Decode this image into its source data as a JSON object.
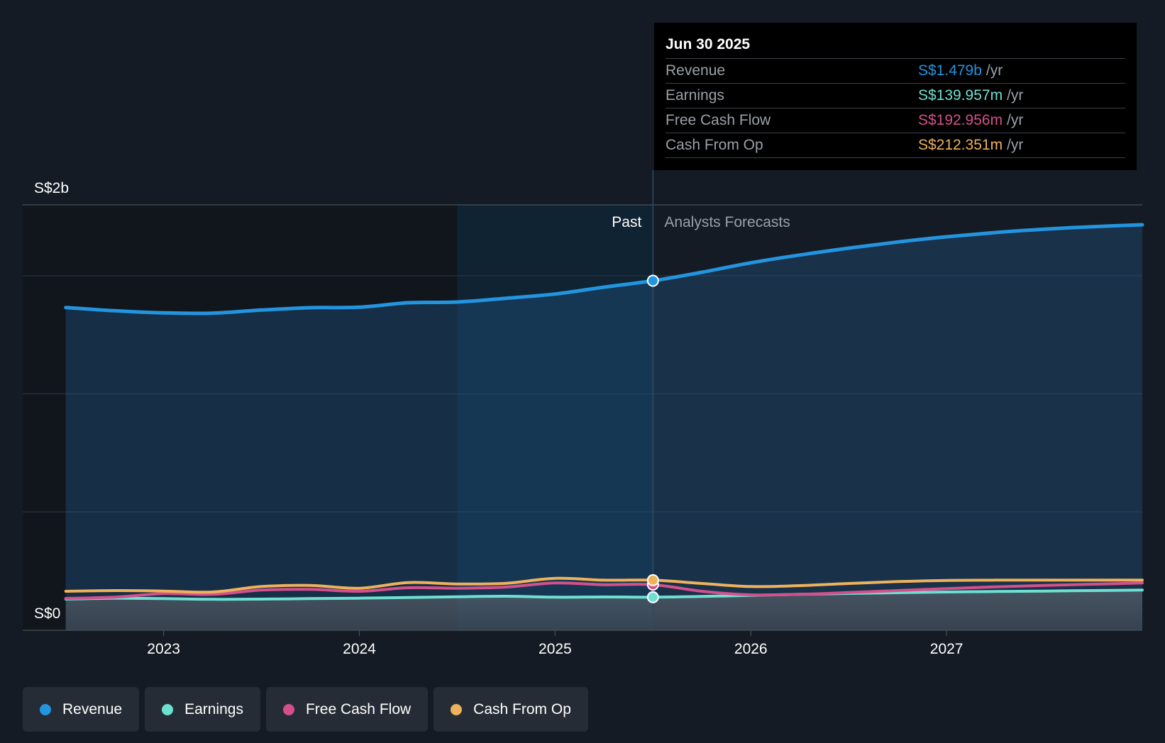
{
  "chart_data": {
    "type": "area",
    "title": "",
    "xlabel": "",
    "ylabel": "",
    "y_tick_labels": [
      "S$0",
      "S$2b"
    ],
    "ylim": [
      0,
      1800000000
    ],
    "x_ticks": [
      {
        "value": 2023.0,
        "label": "2023"
      },
      {
        "value": 2024.0,
        "label": "2024"
      },
      {
        "value": 2025.0,
        "label": "2025"
      },
      {
        "value": 2026.0,
        "label": "2026"
      },
      {
        "value": 2027.0,
        "label": "2027"
      }
    ],
    "xlim": [
      2022.28,
      2028.0
    ],
    "past_label": "Past",
    "forecast_label": "Analysts Forecasts",
    "divider_x": 2025.5,
    "highlight_start_x": 2024.5,
    "series": [
      {
        "name": "Revenue",
        "color": "#2394df",
        "x": [
          2022.5,
          2022.75,
          2023.0,
          2023.25,
          2023.5,
          2023.75,
          2024.0,
          2024.25,
          2024.5,
          2024.75,
          2025.0,
          2025.25,
          2025.5,
          2025.75,
          2026.0,
          2026.25,
          2026.5,
          2026.75,
          2027.0,
          2027.25,
          2027.5,
          2027.75,
          2028.0
        ],
        "values": [
          1366000000,
          1352000000,
          1343000000,
          1342000000,
          1355000000,
          1365000000,
          1367000000,
          1386000000,
          1389000000,
          1405000000,
          1423000000,
          1452000000,
          1479000000,
          1515000000,
          1555000000,
          1588000000,
          1617000000,
          1643000000,
          1665000000,
          1683000000,
          1697000000,
          1708000000,
          1716000000
        ]
      },
      {
        "name": "Earnings",
        "color": "#6ee0d2",
        "x": [
          2022.5,
          2022.75,
          2023.0,
          2023.25,
          2023.5,
          2023.75,
          2024.0,
          2024.25,
          2024.5,
          2024.75,
          2025.0,
          2025.25,
          2025.5,
          2025.75,
          2026.0,
          2026.25,
          2026.5,
          2026.75,
          2027.0,
          2027.25,
          2027.5,
          2027.75,
          2028.0
        ],
        "values": [
          132000000,
          136000000,
          134000000,
          131000000,
          132000000,
          134000000,
          136000000,
          139000000,
          142000000,
          144000000,
          140000000,
          141000000,
          140000000,
          143000000,
          148000000,
          152000000,
          156000000,
          159000000,
          162000000,
          164000000,
          166000000,
          168000000,
          170000000
        ]
      },
      {
        "name": "Free Cash Flow",
        "color": "#d4508c",
        "x": [
          2022.5,
          2022.75,
          2023.0,
          2023.25,
          2023.5,
          2023.75,
          2024.0,
          2024.25,
          2024.5,
          2024.75,
          2025.0,
          2025.25,
          2025.5,
          2025.75,
          2026.0,
          2026.25,
          2026.5,
          2026.75,
          2027.0,
          2027.25,
          2027.5,
          2027.75,
          2028.0
        ],
        "values": [
          135000000,
          140000000,
          155000000,
          152000000,
          170000000,
          173000000,
          165000000,
          180000000,
          178000000,
          183000000,
          200000000,
          193000000,
          193000000,
          165000000,
          150000000,
          152000000,
          160000000,
          168000000,
          176000000,
          184000000,
          190000000,
          195000000,
          200000000
        ]
      },
      {
        "name": "Cash From Op",
        "color": "#efb25c",
        "x": [
          2022.5,
          2022.75,
          2023.0,
          2023.25,
          2023.5,
          2023.75,
          2024.0,
          2024.25,
          2024.5,
          2024.75,
          2025.0,
          2025.25,
          2025.5,
          2025.75,
          2026.0,
          2026.25,
          2026.5,
          2026.75,
          2027.0,
          2027.25,
          2027.5,
          2027.75,
          2028.0
        ],
        "values": [
          165000000,
          168000000,
          166000000,
          162000000,
          185000000,
          190000000,
          178000000,
          202000000,
          196000000,
          199000000,
          220000000,
          212000000,
          212000000,
          198000000,
          185000000,
          189000000,
          198000000,
          206000000,
          211000000,
          212000000,
          212000000,
          212000000,
          212000000
        ]
      }
    ],
    "tooltip": {
      "date": "Jun 30 2025",
      "rows": [
        {
          "label": "Revenue",
          "value": "S$1.479b",
          "unit": "/yr",
          "color": "#2394df"
        },
        {
          "label": "Earnings",
          "value": "S$139.957m",
          "unit": "/yr",
          "color": "#6ee0d2"
        },
        {
          "label": "Free Cash Flow",
          "value": "S$192.956m",
          "unit": "/yr",
          "color": "#d4508c"
        },
        {
          "label": "Cash From Op",
          "value": "S$212.351m",
          "unit": "/yr",
          "color": "#efb25c"
        }
      ]
    }
  },
  "legend": [
    {
      "label": "Revenue",
      "color": "#2394df"
    },
    {
      "label": "Earnings",
      "color": "#6ee0d2"
    },
    {
      "label": "Free Cash Flow",
      "color": "#d4508c"
    },
    {
      "label": "Cash From Op",
      "color": "#efb25c"
    }
  ]
}
